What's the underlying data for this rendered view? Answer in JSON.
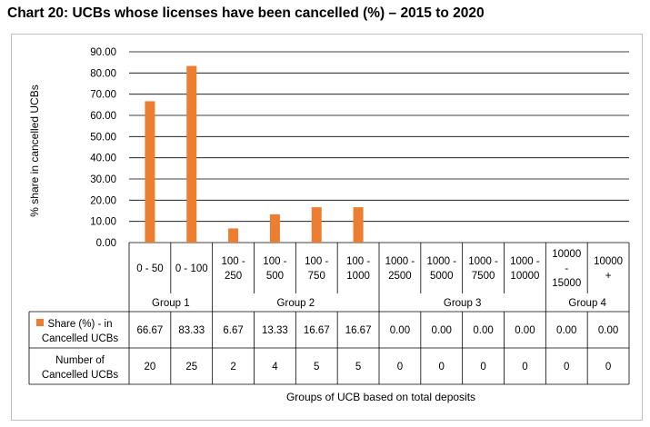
{
  "chart_data": {
    "type": "bar",
    "title": "Chart 20: UCBs whose licenses have been cancelled (%) – 2015 to 2020",
    "ylabel": "% share in cancelled UCBs",
    "xlabel": "Groups of UCB based on total deposits",
    "ylim": [
      0,
      90
    ],
    "yticks": [
      "0.00",
      "10.00",
      "20.00",
      "30.00",
      "40.00",
      "50.00",
      "60.00",
      "70.00",
      "80.00",
      "90.00"
    ],
    "categories": [
      [
        "0 - 50"
      ],
      [
        "0 - 100"
      ],
      [
        "100 -",
        "250"
      ],
      [
        "100 -",
        "500"
      ],
      [
        "100 -",
        "750"
      ],
      [
        "100 -",
        "1000"
      ],
      [
        "1000 -",
        "2500"
      ],
      [
        "1000 -",
        "5000"
      ],
      [
        "1000 -",
        "7500"
      ],
      [
        "1000 -",
        "10000"
      ],
      [
        "10000",
        "-",
        "15000"
      ],
      [
        "10000",
        "+"
      ]
    ],
    "groups": [
      {
        "name": "Group 1",
        "span": 2
      },
      {
        "name": "Group 2",
        "span": 4
      },
      {
        "name": "Group 3",
        "span": 4
      },
      {
        "name": "Group 4",
        "span": 2
      }
    ],
    "series": [
      {
        "name": "Share (%) - in Cancelled UCBs",
        "legend_lines": [
          "Share (%) - in",
          "Cancelled UCBs"
        ],
        "color": "#ED7D31",
        "values": [
          66.67,
          83.33,
          6.67,
          13.33,
          16.67,
          16.67,
          0,
          0,
          0,
          0,
          0,
          0
        ],
        "labels": [
          "66.67",
          "83.33",
          "6.67",
          "13.33",
          "16.67",
          "16.67",
          "0.00",
          "0.00",
          "0.00",
          "0.00",
          "0.00",
          "0.00"
        ]
      }
    ],
    "table_rows": [
      {
        "label_lines": [
          "Number of",
          "Cancelled UCBs"
        ],
        "values": [
          "20",
          "25",
          "2",
          "4",
          "5",
          "5",
          "0",
          "0",
          "0",
          "0",
          "0",
          "0"
        ]
      }
    ]
  }
}
